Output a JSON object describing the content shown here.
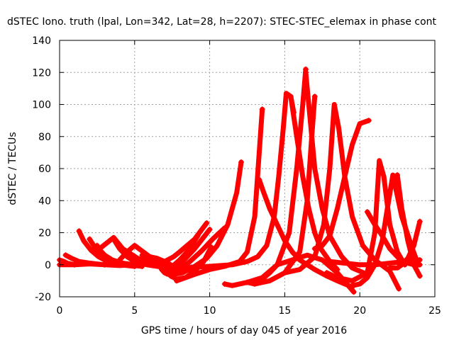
{
  "chart_data": {
    "type": "scatter",
    "title": "dSTEC Iono. truth (lpal, Lon=342, Lat=28, h=2207): STEC-STEC_elemax in phase cont",
    "xlabel": "GPS time / hours of day 045 of year 2016",
    "ylabel": "dSTEC  / TECUs",
    "xlim": [
      0,
      25
    ],
    "ylim": [
      -20,
      140
    ],
    "xticks": [
      0,
      5,
      10,
      15,
      20,
      25
    ],
    "yticks": [
      -20,
      0,
      20,
      40,
      60,
      80,
      100,
      120,
      140
    ],
    "grid": true,
    "marker": "plus",
    "color": "#ff0000",
    "series": [
      {
        "x": [
          0,
          1,
          2,
          3,
          4,
          5,
          6,
          7,
          7.5
        ],
        "y": [
          0,
          0,
          0.5,
          0,
          -0.5,
          0,
          0.5,
          0,
          -1
        ]
      },
      {
        "x": [
          0,
          0.3,
          0.5,
          1.0
        ],
        "y": [
          3,
          2,
          1,
          0
        ]
      },
      {
        "x": [
          0.4,
          0.8,
          1.3,
          2.0,
          3.0
        ],
        "y": [
          6,
          4,
          2,
          1,
          0
        ]
      },
      {
        "x": [
          1.3,
          1.6,
          2.1,
          2.6,
          3.2,
          4.0,
          5.0
        ],
        "y": [
          21,
          15,
          9,
          5,
          2,
          0,
          -1
        ]
      },
      {
        "x": [
          2.0,
          2.4,
          2.9,
          3.5,
          4.5,
          5.5
        ],
        "y": [
          16,
          10,
          5,
          2,
          0,
          -1
        ]
      },
      {
        "x": [
          2.5,
          2.7,
          3.0,
          3.5,
          4.2,
          5.0
        ],
        "y": [
          12,
          9,
          6,
          3,
          1,
          0
        ]
      },
      {
        "x": [
          2.8,
          3.2,
          3.6,
          4.2,
          5.2,
          6.5
        ],
        "y": [
          11,
          14,
          17,
          10,
          4,
          1
        ]
      },
      {
        "x": [
          3.6,
          4.0,
          4.5,
          5.0,
          5.8,
          6.5,
          7.3
        ],
        "y": [
          16,
          10,
          5,
          2,
          0,
          -1,
          -2
        ]
      },
      {
        "x": [
          4.0,
          4.5,
          5.0,
          6.0,
          7.0
        ],
        "y": [
          3,
          8,
          12,
          5,
          0
        ]
      },
      {
        "x": [
          5.5,
          6.0,
          6.5,
          7.0,
          7.4
        ],
        "y": [
          6,
          5,
          4,
          2,
          0
        ]
      },
      {
        "x": [
          6.8,
          7.0,
          7.2,
          7.4,
          7.6,
          8.0,
          8.5,
          9.0,
          9.5,
          10.0
        ],
        "y": [
          -3,
          -5,
          -6,
          -6,
          -4,
          0,
          5,
          10,
          16,
          22
        ]
      },
      {
        "x": [
          7.0,
          7.3,
          7.7,
          8.2,
          8.8,
          9.5,
          10.2,
          11.0
        ],
        "y": [
          -2,
          -4,
          -5,
          -2,
          3,
          9,
          16,
          23
        ]
      },
      {
        "x": [
          7.2,
          7.6,
          8.2,
          9.0,
          9.8,
          10.5,
          11.2,
          11.8,
          12.1
        ],
        "y": [
          -4,
          -6,
          -5,
          -1,
          4,
          12,
          25,
          45,
          64
        ]
      },
      {
        "x": [
          7.4,
          7.8,
          8.4,
          9.0,
          9.6,
          10.1
        ],
        "y": [
          -7,
          -9,
          -8,
          -4,
          2,
          11
        ]
      },
      {
        "x": [
          7.0,
          7.6,
          8.0,
          8.5,
          9.0,
          9.4,
          9.8
        ],
        "y": [
          2,
          5,
          8,
          12,
          16,
          21,
          26
        ]
      },
      {
        "x": [
          7.4,
          8.0,
          8.5,
          8.8,
          9.0,
          9.2
        ],
        "y": [
          -2,
          3,
          8,
          12,
          15,
          18
        ]
      },
      {
        "x": [
          7.8,
          9.0,
          10.0,
          11.0,
          12.0,
          12.5,
          13.0,
          13.5
        ],
        "y": [
          -10,
          -6,
          -3,
          -1,
          2,
          8,
          30,
          97
        ]
      },
      {
        "x": [
          8.0,
          10.0,
          11.5,
          12.5,
          13.2,
          13.8,
          14.3,
          14.6,
          14.9,
          15.1,
          15.4,
          15.6
        ],
        "y": [
          -2,
          -1,
          0,
          2,
          5,
          12,
          30,
          55,
          85,
          107,
          105,
          95
        ]
      },
      {
        "x": [
          11.0,
          11.5,
          12.5,
          13.5,
          14.5,
          15.3,
          15.8,
          16.2,
          16.4
        ],
        "y": [
          -12,
          -13,
          -11,
          -8,
          0,
          20,
          60,
          100,
          122
        ]
      },
      {
        "x": [
          12.5,
          13.0,
          13.5,
          14.0,
          14.5,
          15.5,
          16.5,
          17.5,
          18.5,
          19.6
        ],
        "y": [
          -11,
          -12,
          -9,
          -5,
          0,
          3,
          6,
          3,
          -5,
          -17
        ]
      },
      {
        "x": [
          13.0,
          14.0,
          15.0,
          16.0,
          16.5,
          16.8,
          17.0
        ],
        "y": [
          -12,
          -10,
          -5,
          8,
          40,
          80,
          105
        ]
      },
      {
        "x": [
          13.3,
          13.6,
          14.0,
          14.5,
          15.0,
          15.5,
          16.0,
          16.5,
          17.0,
          17.8,
          18.5,
          19.5
        ],
        "y": [
          53,
          45,
          35,
          25,
          15,
          8,
          3,
          0,
          -3,
          -7,
          -10,
          -14
        ]
      },
      {
        "x": [
          15.4,
          15.8,
          16.2,
          16.6,
          17.0,
          17.4,
          18.0,
          18.5
        ],
        "y": [
          105,
          80,
          55,
          35,
          20,
          10,
          2,
          -3
        ]
      },
      {
        "x": [
          16.4,
          16.7,
          17.0,
          17.5,
          18.0,
          18.8,
          19.5,
          20.5
        ],
        "y": [
          120,
          90,
          60,
          35,
          18,
          5,
          -2,
          -6
        ]
      },
      {
        "x": [
          15.0,
          16.0,
          17.0,
          17.6,
          18.0,
          18.3,
          18.6,
          19.0,
          19.5,
          20.2,
          21.0,
          22.0,
          22.6
        ],
        "y": [
          -5,
          -3,
          5,
          25,
          60,
          100,
          85,
          55,
          30,
          12,
          3,
          -4,
          -15
        ]
      },
      {
        "x": [
          17.0,
          17.5,
          18.0,
          18.5,
          19.0,
          19.5,
          20.0,
          20.6
        ],
        "y": [
          10,
          12,
          18,
          35,
          55,
          75,
          88,
          90
        ]
      },
      {
        "x": [
          17.8,
          18.5,
          19.5,
          20.5,
          21.0,
          21.3,
          21.6,
          22.0,
          22.5,
          23.0
        ],
        "y": [
          -5,
          -8,
          -10,
          -5,
          20,
          65,
          55,
          25,
          8,
          0
        ]
      },
      {
        "x": [
          19.5,
          20.0,
          20.5,
          21.0,
          21.5,
          21.8,
          22.2,
          22.8,
          23.5,
          23.9
        ],
        "y": [
          -13,
          -12,
          -8,
          0,
          15,
          33,
          56,
          30,
          10,
          0
        ]
      },
      {
        "x": [
          20.5,
          21.0,
          21.5,
          22.0,
          22.5,
          22.8,
          23.2,
          23.6,
          24.0
        ],
        "y": [
          33,
          25,
          18,
          10,
          5,
          2,
          1,
          0,
          0
        ]
      },
      {
        "x": [
          22.0,
          22.5,
          22.8,
          23.2,
          23.6,
          24.0
        ],
        "y": [
          -2,
          -2,
          0,
          4,
          12,
          27
        ]
      },
      {
        "x": [
          22.5,
          22.8,
          23.2,
          23.6,
          24.0
        ],
        "y": [
          56,
          35,
          15,
          0,
          -7
        ]
      },
      {
        "x": [
          18.0,
          19.0,
          20.0,
          21.0,
          22.0,
          23.0,
          24.0
        ],
        "y": [
          2,
          1,
          0,
          0,
          1,
          2,
          3
        ]
      }
    ]
  }
}
